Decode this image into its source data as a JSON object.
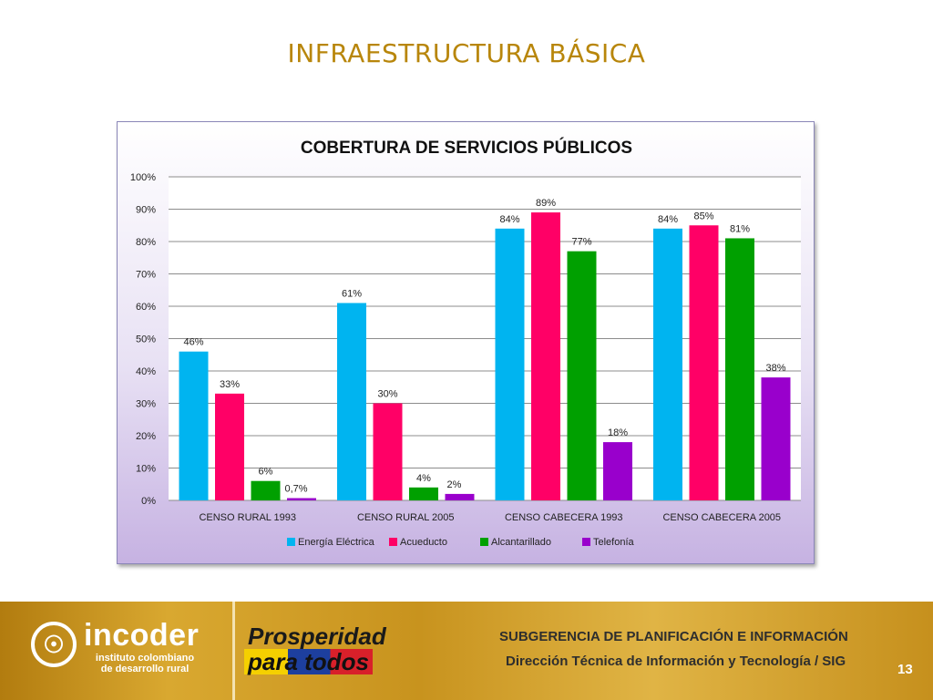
{
  "slide": {
    "title": "INFRAESTRUCTURA BÁSICA",
    "page_number": "13"
  },
  "footer": {
    "org_name": "incoder",
    "org_sub_line1": "instituto colombiano",
    "org_sub_line2": "de desarrollo rural",
    "slogan_line1": "Prosperidad",
    "slogan_line2": "para todos",
    "subgerencia": "SUBGERENCIA DE PLANIFICACIÓN E INFORMACIÓN",
    "direccion": "Dirección Técnica de Información y Tecnología / SIG"
  },
  "chart_data": {
    "type": "bar",
    "title": "COBERTURA DE SERVICIOS PÚBLICOS",
    "categories": [
      "CENSO RURAL 1993",
      "CENSO RURAL 2005",
      "CENSO CABECERA 1993",
      "CENSO CABECERA 2005"
    ],
    "series": [
      {
        "name": "Energía Eléctrica",
        "color": "#00b4f0",
        "values": [
          46,
          61,
          84,
          84
        ],
        "labels": [
          "46%",
          "61%",
          "84%",
          "84%"
        ]
      },
      {
        "name": "Acueducto",
        "color": "#ff0066",
        "values": [
          33,
          30,
          89,
          85
        ],
        "labels": [
          "33%",
          "30%",
          "89%",
          "85%"
        ]
      },
      {
        "name": "Alcantarillado",
        "color": "#00a000",
        "values": [
          6,
          4,
          77,
          81
        ],
        "labels": [
          "6%",
          "4%",
          "77%",
          "81%"
        ]
      },
      {
        "name": "Telefonía",
        "color": "#9900cc",
        "values": [
          0.7,
          2,
          18,
          38
        ],
        "labels": [
          "0,7%",
          "2%",
          "18%",
          "38%"
        ]
      }
    ],
    "ylim": [
      0,
      100
    ],
    "yticks": [
      "0%",
      "10%",
      "20%",
      "30%",
      "40%",
      "50%",
      "60%",
      "70%",
      "80%",
      "90%",
      "100%"
    ],
    "grid": true,
    "legend": "bottom"
  }
}
